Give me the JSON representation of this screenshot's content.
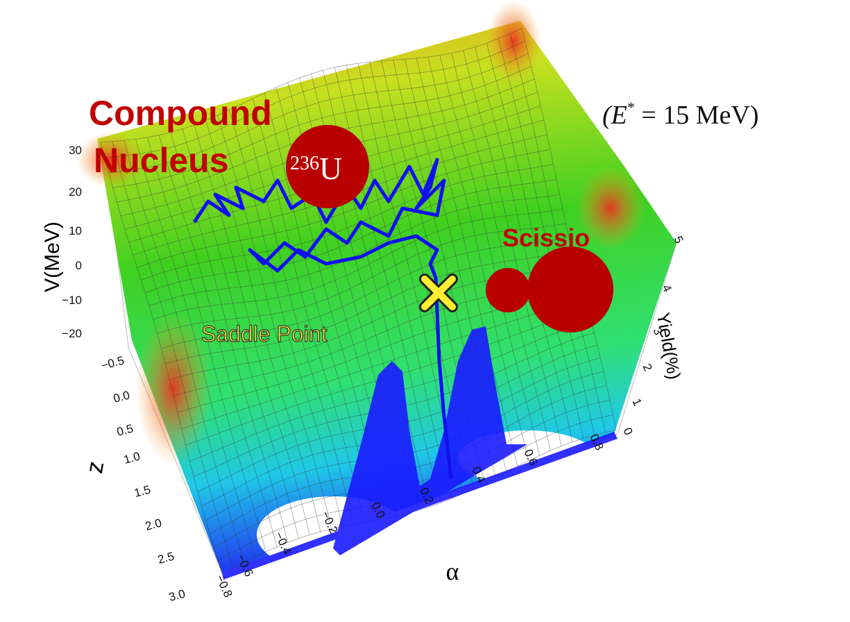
{
  "annotations": {
    "compound_line1": "Compound",
    "compound_line2": "Nucleus",
    "nucleus_mass": "236",
    "nucleus_symbol": "U",
    "energy_open": "(E",
    "energy_sup": "*",
    "energy_rest": " = 15 MeV)",
    "saddle_point": "Saddle Point",
    "scission": "Scissio"
  },
  "axes": {
    "potential": {
      "label": "V(MeV)",
      "ticks": [
        "30",
        "20",
        "10",
        "0",
        "−10",
        "−20"
      ]
    },
    "elongation": {
      "label": "z",
      "ticks": [
        "−0.5",
        "0.0",
        "0.5",
        "1.0",
        "1.5",
        "2.0",
        "2.5",
        "3.0"
      ]
    },
    "asymmetry": {
      "label": "α",
      "ticks": [
        "−0.8",
        "−0.6",
        "−0.4",
        "−0.2",
        "0.0",
        "0.2",
        "0.4",
        "0.6",
        "0.8"
      ]
    },
    "yield": {
      "label": "Yield(%)",
      "ticks": [
        "0",
        "1",
        "2",
        "3",
        "4",
        "5"
      ]
    }
  }
}
